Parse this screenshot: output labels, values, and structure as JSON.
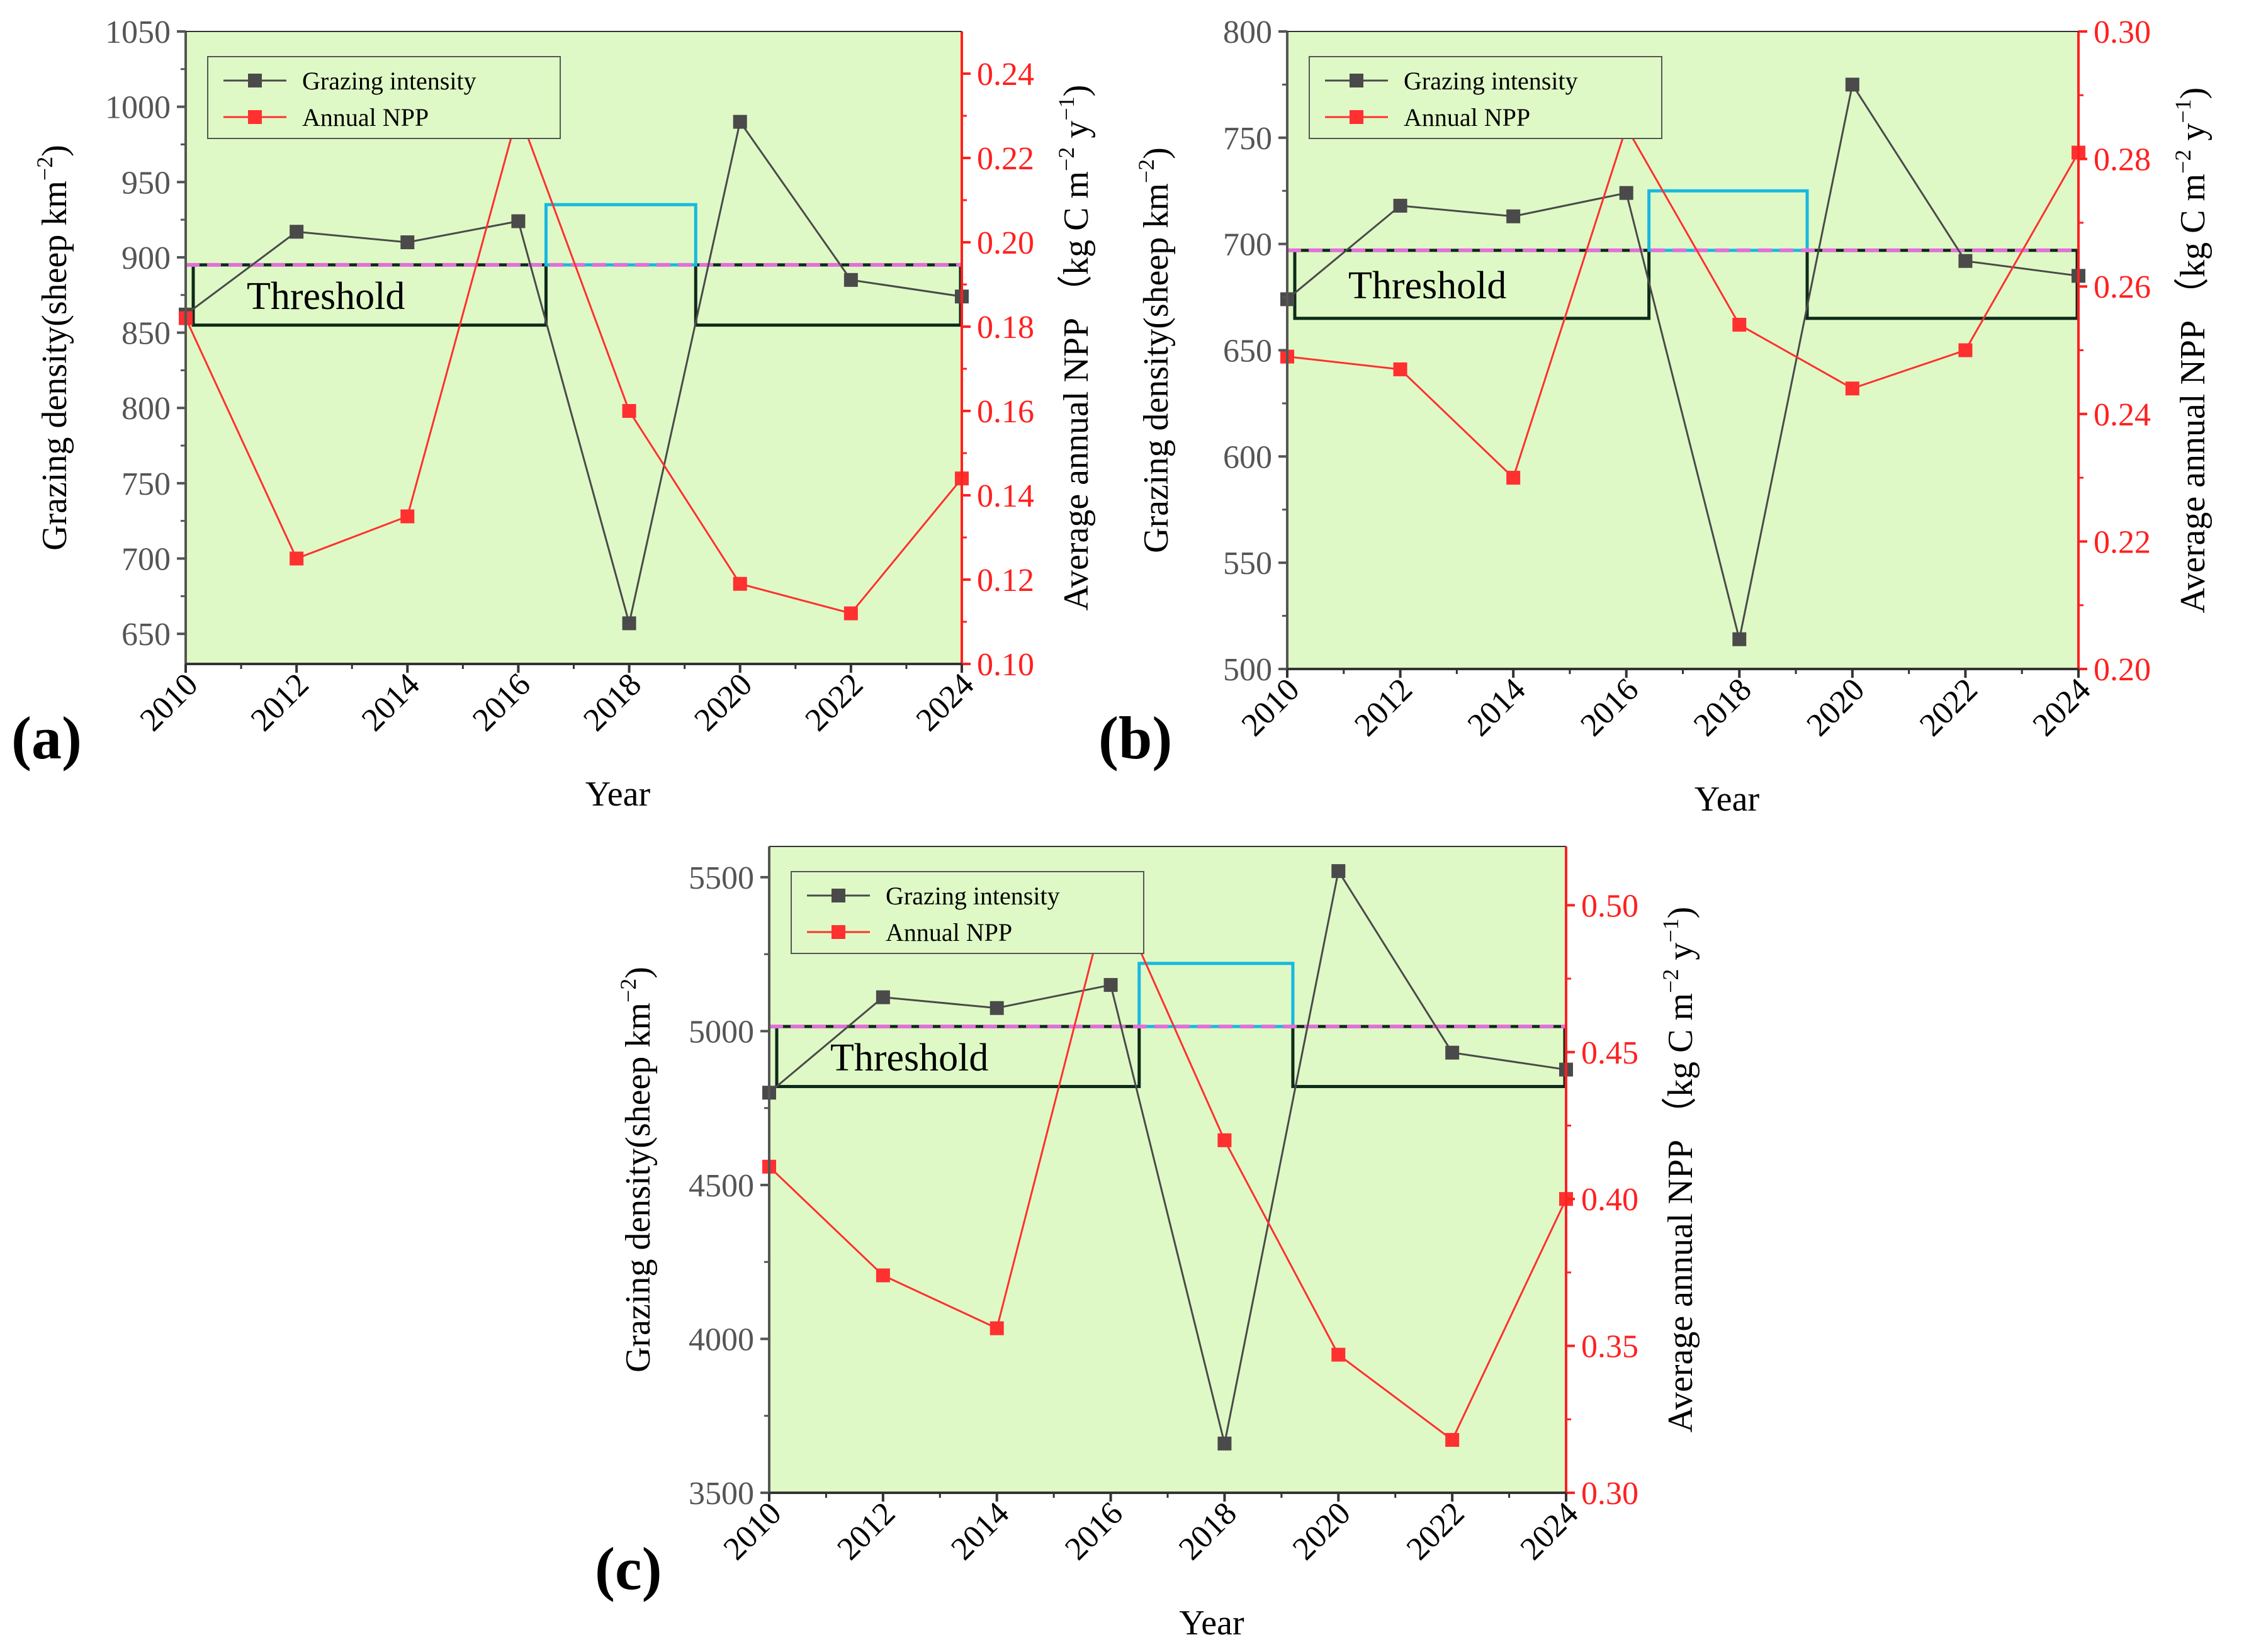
{
  "colors": {
    "plot_bg": "#dff9c6",
    "grazing": "#4a4a4a",
    "npp": "#ff3030",
    "threshold_box": "#0e2a1a",
    "above_box": "#18b8e0",
    "dash": "#e070d8",
    "left_axis": "#555555",
    "right_axis": "#ff2020"
  },
  "chart_data": [
    {
      "type": "line",
      "panel_label": "(a)",
      "xlabel": "Year",
      "ylabel": "Grazing density(sheep km",
      "ylabel_sup": "−2",
      "ylabel_end": ")",
      "y2label": "Average annual NPP （kg C m",
      "y2label_sup1": "−2",
      "y2label_mid": " y",
      "y2label_sup2": "−1",
      "y2label_end": ")",
      "x": [
        2010,
        2012,
        2014,
        2016,
        2018,
        2020,
        2022,
        2024
      ],
      "xlim": [
        2010,
        2024
      ],
      "ylim": [
        630,
        1050
      ],
      "y2lim": [
        0.1,
        0.25
      ],
      "yticks": [
        650,
        700,
        750,
        800,
        850,
        900,
        950,
        1000,
        1050
      ],
      "y2ticks": [
        0.1,
        0.12,
        0.14,
        0.16,
        0.18,
        0.2,
        0.22,
        0.24
      ],
      "y2decimals": 2,
      "series": [
        {
          "name": "Grazing intensity",
          "axis": "left",
          "values": [
            862,
            917,
            910,
            924,
            657,
            990,
            885,
            874
          ]
        },
        {
          "name": "Annual NPP",
          "axis": "right",
          "values": [
            0.182,
            0.125,
            0.135,
            0.231,
            0.16,
            0.119,
            0.112,
            0.144
          ]
        }
      ],
      "threshold": {
        "label": "Threshold",
        "value": 895,
        "band_low": 855,
        "band_high": 895,
        "above_high": 935,
        "above_from": 2016.5,
        "above_to": 2019.2
      }
    },
    {
      "type": "line",
      "panel_label": "(b)",
      "xlabel": "Year",
      "ylabel": "Grazing density(sheep km",
      "ylabel_sup": "−2",
      "ylabel_end": ")",
      "y2label": "Average annual NPP （kg C m",
      "y2label_sup1": "−2",
      "y2label_mid": " y",
      "y2label_sup2": "−1",
      "y2label_end": ")",
      "x": [
        2010,
        2012,
        2014,
        2016,
        2018,
        2020,
        2022,
        2024
      ],
      "xlim": [
        2010,
        2024
      ],
      "ylim": [
        500,
        800
      ],
      "y2lim": [
        0.2,
        0.3
      ],
      "yticks": [
        500,
        550,
        600,
        650,
        700,
        750,
        800
      ],
      "y2ticks": [
        0.2,
        0.22,
        0.24,
        0.26,
        0.28,
        0.3
      ],
      "y2decimals": 2,
      "series": [
        {
          "name": "Grazing intensity",
          "axis": "left",
          "values": [
            674,
            718,
            713,
            724,
            514,
            775,
            692,
            685
          ]
        },
        {
          "name": "Annual NPP",
          "axis": "right",
          "values": [
            0.249,
            0.247,
            0.23,
            0.285,
            0.254,
            0.244,
            0.25,
            0.281
          ]
        }
      ],
      "threshold": {
        "label": "Threshold",
        "value": 697,
        "band_low": 665,
        "band_high": 697,
        "above_high": 725,
        "above_from": 2016.4,
        "above_to": 2019.2
      }
    },
    {
      "type": "line",
      "panel_label": "(c)",
      "xlabel": "Year",
      "ylabel": "Grazing density(sheep km",
      "ylabel_sup": "−2",
      "ylabel_end": ")",
      "y2label": "Average annual NPP （kg C m",
      "y2label_sup1": "−2",
      "y2label_mid": " y",
      "y2label_sup2": "−1",
      "y2label_end": ")",
      "x": [
        2010,
        2012,
        2014,
        2016,
        2018,
        2020,
        2022,
        2024
      ],
      "xlim": [
        2010,
        2024
      ],
      "ylim": [
        3500,
        5600
      ],
      "y2lim": [
        0.3,
        0.52
      ],
      "yticks": [
        3500,
        4000,
        4500,
        5000,
        5500
      ],
      "y2ticks": [
        0.3,
        0.35,
        0.4,
        0.45,
        0.5
      ],
      "y2decimals": 2,
      "series": [
        {
          "name": "Grazing intensity",
          "axis": "left",
          "values": [
            4800,
            5110,
            5075,
            5150,
            3660,
            5520,
            4930,
            4875
          ]
        },
        {
          "name": "Annual NPP",
          "axis": "right",
          "values": [
            0.411,
            0.374,
            0.356,
            0.507,
            0.42,
            0.347,
            0.318,
            0.4
          ]
        }
      ],
      "threshold": {
        "label": "Threshold",
        "value": 5015,
        "band_low": 4820,
        "band_high": 5015,
        "above_high": 5220,
        "above_from": 2016.5,
        "above_to": 2019.2
      }
    }
  ]
}
